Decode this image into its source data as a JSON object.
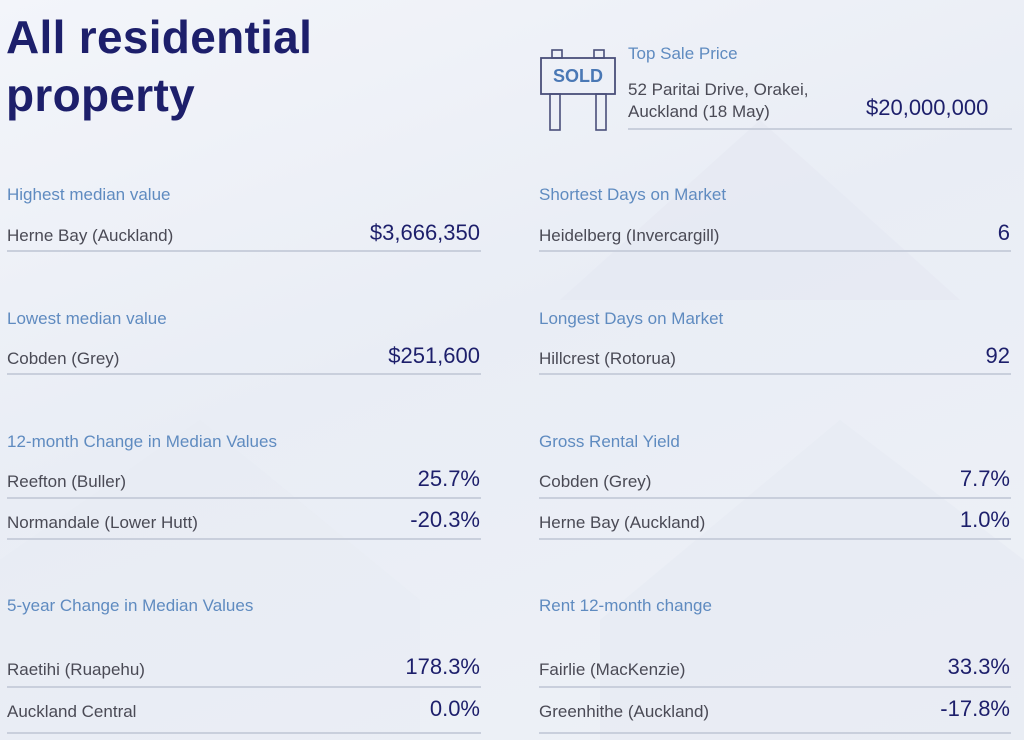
{
  "title": "All residential property",
  "top_sale": {
    "label": "Top Sale Price",
    "address_line1": "52 Paritai Drive, Orakei,",
    "address_line2": "Auckland (18 May)",
    "value": "$20,000,000",
    "icon": "sold-sign-icon",
    "sign_text": "SOLD"
  },
  "sections": [
    {
      "label": "Highest median value",
      "rows": [
        {
          "name": "Herne Bay (Auckland)",
          "value": "$3,666,350"
        }
      ]
    },
    {
      "label": "Shortest Days on Market",
      "rows": [
        {
          "name": "Heidelberg (Invercargill)",
          "value": "6"
        }
      ]
    },
    {
      "label": "Lowest median value",
      "rows": [
        {
          "name": "Cobden (Grey)",
          "value": "$251,600"
        }
      ]
    },
    {
      "label": "Longest Days on Market",
      "rows": [
        {
          "name": "Hillcrest (Rotorua)",
          "value": "92"
        }
      ]
    },
    {
      "label": "12-month Change in Median Values",
      "rows": [
        {
          "name": "Reefton (Buller)",
          "value": "25.7%"
        },
        {
          "name": "Normandale (Lower Hutt)",
          "value": "-20.3%"
        }
      ]
    },
    {
      "label": "Gross Rental Yield",
      "rows": [
        {
          "name": "Cobden (Grey)",
          "value": "7.7%"
        },
        {
          "name": "Herne Bay (Auckland)",
          "value": "1.0%"
        }
      ]
    },
    {
      "label": "5-year Change in Median Values",
      "rows": [
        {
          "name": "Raetihi (Ruapehu)",
          "value": "178.3%"
        },
        {
          "name": "Auckland Central",
          "value": "0.0%"
        }
      ]
    },
    {
      "label": "Rent 12-month change",
      "rows": [
        {
          "name": "Fairlie (MacKenzie)",
          "value": "33.3%"
        },
        {
          "name": "Greenhithe (Auckland)",
          "value": "-17.8%"
        }
      ]
    }
  ],
  "colors": {
    "title": "#1d1f6b",
    "label": "#5f8bc0",
    "text": "#4a4a55",
    "line": "#c9cfdc"
  }
}
